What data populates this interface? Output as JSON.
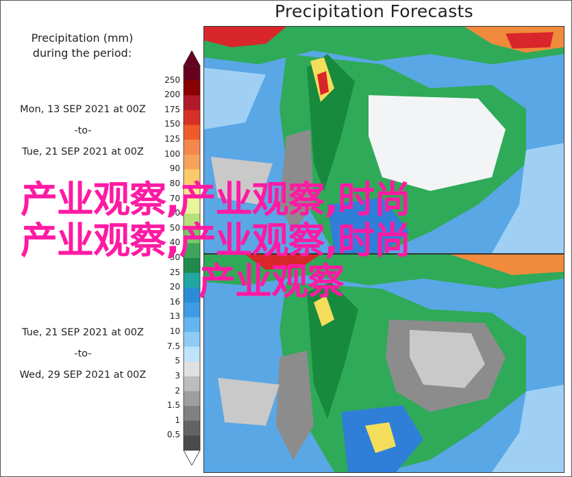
{
  "title": "Precipitation Forecasts",
  "legend": {
    "title_line1": "Precipitation (mm)",
    "title_line2": "during the period:",
    "ticks": [
      "250",
      "200",
      "175",
      "150",
      "125",
      "100",
      "90",
      "80",
      "70",
      "60",
      "50",
      "40",
      "30",
      "25",
      "20",
      "16",
      "13",
      "10",
      "7.5",
      "5",
      "3",
      "2",
      "1.5",
      "1",
      "0.5"
    ],
    "colors": [
      "#67001f",
      "#8b0000",
      "#b2182b",
      "#d73027",
      "#ef5a2b",
      "#f4874e",
      "#f6a35a",
      "#fbca6a",
      "#fde68a",
      "#e8f59a",
      "#b6e07a",
      "#7ac868",
      "#3ea55a",
      "#1f8a4c",
      "#22a6a0",
      "#2b8cd6",
      "#3f9be6",
      "#63b5f0",
      "#8fcbf5",
      "#bfe3fa",
      "#e0e0e0",
      "#bdbdbd",
      "#9e9e9e",
      "#808080",
      "#636363",
      "#4a4a4a"
    ]
  },
  "periods": [
    {
      "line1": "Mon, 13 SEP 2021 at 00Z",
      "line2": "-to-",
      "line3": "Tue, 21 SEP 2021 at 00Z"
    },
    {
      "line1": "Tue, 21 SEP 2021 at 00Z",
      "line2": "-to-",
      "line3": "Wed, 29 SEP 2021 at 00Z"
    }
  ],
  "watermark": {
    "line1": "产业观察,产业观察,时尚",
    "line2": "产业观察,产业观察,时尚",
    "line3": "产业观察"
  },
  "map_colors": {
    "ocean_blue": "#5aa7e6",
    "light_blue": "#9fd0f4",
    "deep_blue": "#2f7fd8",
    "green": "#2faa58",
    "dark_green": "#178a3e",
    "yellow": "#f4dd5a",
    "orange": "#f08a3c",
    "red": "#d8262a",
    "dry_white": "#f2f4f6",
    "dry_gray": "#8c8c8c",
    "light_gray": "#c9c9c9"
  }
}
